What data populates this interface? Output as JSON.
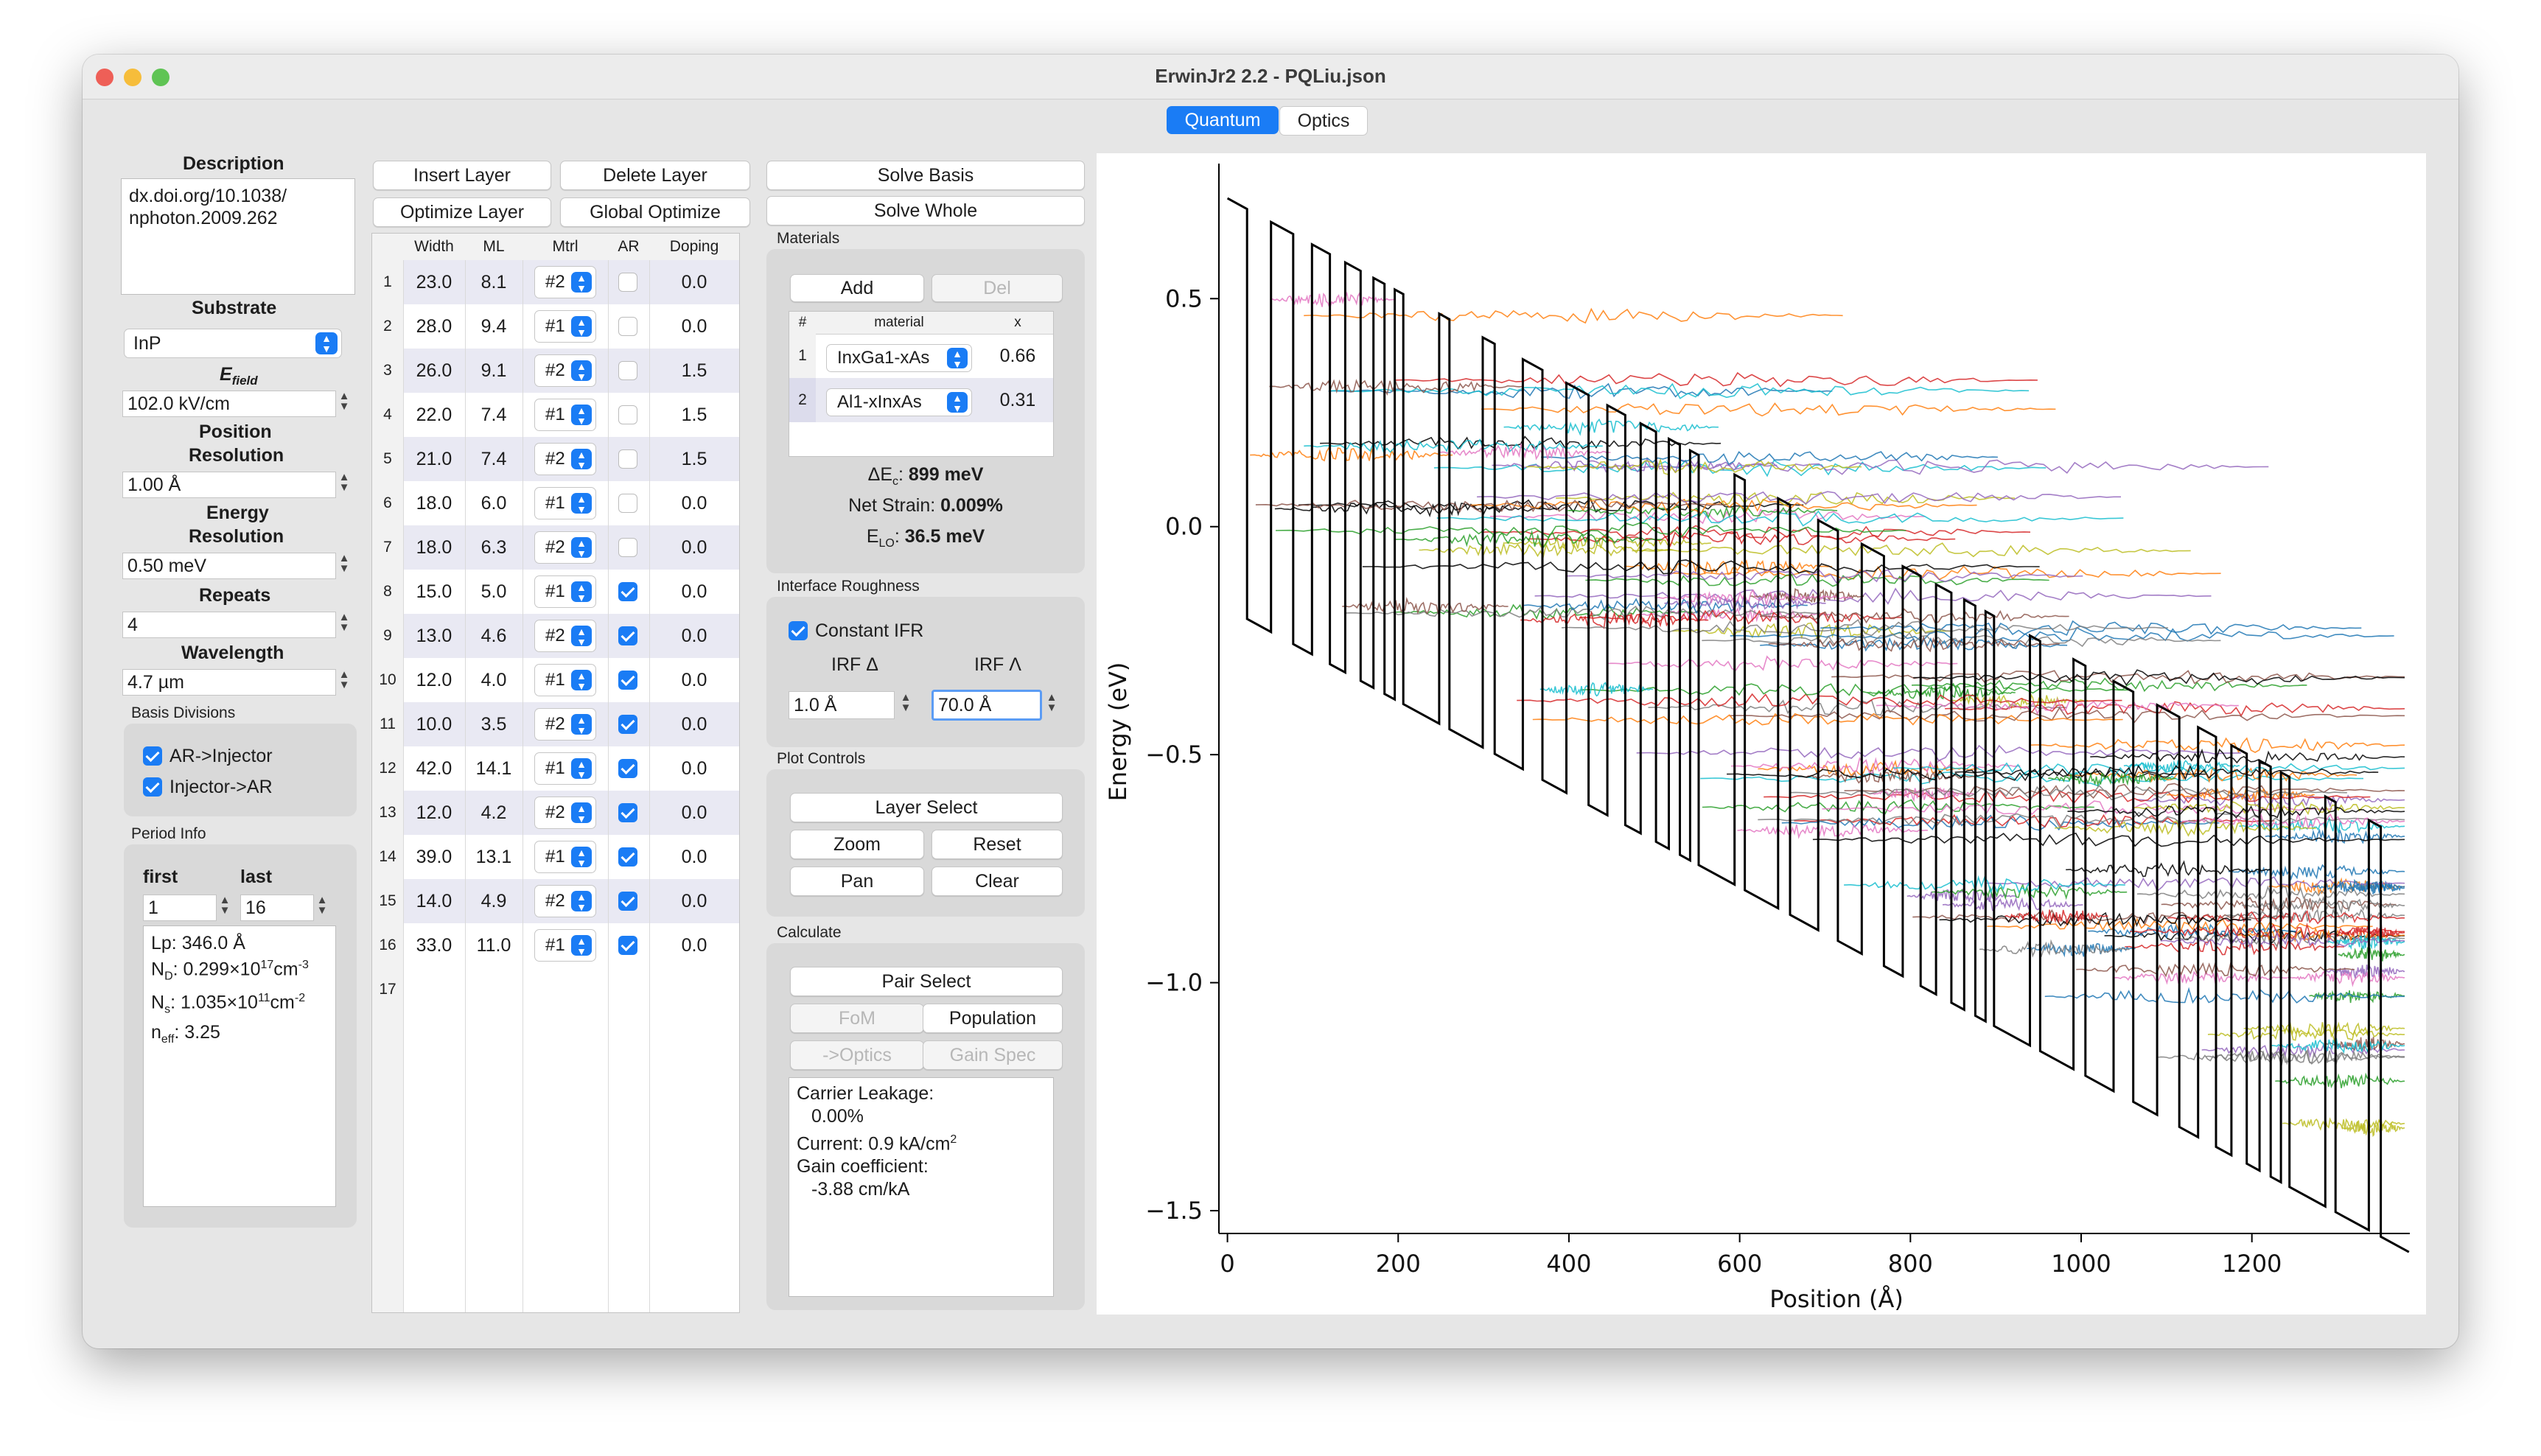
{
  "window": {
    "title": "ErwinJr2 2.2 - PQLiu.json",
    "tabs": [
      {
        "label": "Quantum",
        "active": true
      },
      {
        "label": "Optics",
        "active": false
      }
    ]
  },
  "left": {
    "description_label": "Description",
    "description_lines": [
      "dx.doi.org/10.1038/",
      "nphoton.2009.262"
    ],
    "substrate_label": "Substrate",
    "substrate_value": "InP",
    "efield_label": "E",
    "efield_sub": "field",
    "efield_value": "102.0 kV/cm",
    "posres_label_1": "Position",
    "posres_label_2": "Resolution",
    "posres_value": "1.00 Å",
    "enres_label_1": "Energy",
    "enres_label_2": "Resolution",
    "enres_value": "0.50 meV",
    "repeats_label": "Repeats",
    "repeats_value": "4",
    "wavelength_label": "Wavelength",
    "wavelength_value": "4.7 µm",
    "basis_label": "Basis Divisions",
    "basis_ar_inj": "AR->Injector",
    "basis_inj_ar": "Injector->AR",
    "period_label": "Period Info",
    "first_label": "first",
    "last_label": "last",
    "first_value": "1",
    "last_value": "16",
    "info_lp": "Lp: 346.0 Å",
    "info_nd_a": "N",
    "info_nd_sub": "D",
    "info_nd_b": ": 0.299×10",
    "info_nd_sup": "17",
    "info_nd_c": "cm",
    "info_nd_sup2": "-3",
    "info_ns_a": "N",
    "info_ns_sub": "s",
    "info_ns_b": ": 1.035×10",
    "info_ns_sup": "11",
    "info_ns_c": "cm",
    "info_ns_sup2": "-2",
    "info_neff_a": "n",
    "info_neff_sub": "eff",
    "info_neff_b": ": 3.25"
  },
  "layer": {
    "insert": "Insert Layer",
    "delete": "Delete Layer",
    "optimize": "Optimize Layer",
    "global_opt": "Global Optimize",
    "headers": [
      "Width",
      "ML",
      "Mtrl",
      "AR",
      "Doping"
    ],
    "rows": [
      {
        "n": "1",
        "w": "23.0",
        "ml": "8.1",
        "m": "#2",
        "ar": false,
        "d": "0.0"
      },
      {
        "n": "2",
        "w": "28.0",
        "ml": "9.4",
        "m": "#1",
        "ar": false,
        "d": "0.0"
      },
      {
        "n": "3",
        "w": "26.0",
        "ml": "9.1",
        "m": "#2",
        "ar": false,
        "d": "1.5"
      },
      {
        "n": "4",
        "w": "22.0",
        "ml": "7.4",
        "m": "#1",
        "ar": false,
        "d": "1.5"
      },
      {
        "n": "5",
        "w": "21.0",
        "ml": "7.4",
        "m": "#2",
        "ar": false,
        "d": "1.5"
      },
      {
        "n": "6",
        "w": "18.0",
        "ml": "6.0",
        "m": "#1",
        "ar": false,
        "d": "0.0"
      },
      {
        "n": "7",
        "w": "18.0",
        "ml": "6.3",
        "m": "#2",
        "ar": false,
        "d": "0.0"
      },
      {
        "n": "8",
        "w": "15.0",
        "ml": "5.0",
        "m": "#1",
        "ar": true,
        "d": "0.0"
      },
      {
        "n": "9",
        "w": "13.0",
        "ml": "4.6",
        "m": "#2",
        "ar": true,
        "d": "0.0"
      },
      {
        "n": "10",
        "w": "12.0",
        "ml": "4.0",
        "m": "#1",
        "ar": true,
        "d": "0.0"
      },
      {
        "n": "11",
        "w": "10.0",
        "ml": "3.5",
        "m": "#2",
        "ar": true,
        "d": "0.0"
      },
      {
        "n": "12",
        "w": "42.0",
        "ml": "14.1",
        "m": "#1",
        "ar": true,
        "d": "0.0"
      },
      {
        "n": "13",
        "w": "12.0",
        "ml": "4.2",
        "m": "#2",
        "ar": true,
        "d": "0.0"
      },
      {
        "n": "14",
        "w": "39.0",
        "ml": "13.1",
        "m": "#1",
        "ar": true,
        "d": "0.0"
      },
      {
        "n": "15",
        "w": "14.0",
        "ml": "4.9",
        "m": "#2",
        "ar": true,
        "d": "0.0"
      },
      {
        "n": "16",
        "w": "33.0",
        "ml": "11.0",
        "m": "#1",
        "ar": true,
        "d": "0.0"
      },
      {
        "n": "17",
        "w": "",
        "ml": "",
        "m": "",
        "ar": null,
        "d": ""
      }
    ]
  },
  "solve": {
    "basis": "Solve Basis",
    "whole": "Solve Whole",
    "materials_label": "Materials",
    "add": "Add",
    "del": "Del",
    "mat_headers": [
      "#",
      "material",
      "x"
    ],
    "materials": [
      {
        "n": "1",
        "name": "InxGa1-xAs",
        "x": "0.66"
      },
      {
        "n": "2",
        "name": "Al1-xInxAs",
        "x": "0.31"
      }
    ],
    "dec_label": "ΔE",
    "dec_sub": "c",
    "dec_value": "899 meV",
    "strain_label": "Net Strain: ",
    "strain_value": "0.009%",
    "elo_label": "E",
    "elo_sub": "LO",
    "elo_value": "36.5 meV",
    "ifr_label": "Interface Roughness",
    "const_ifr": "Constant IFR",
    "irf_delta_label": "IRF Δ",
    "irf_lambda_label": "IRF Λ",
    "irf_delta": "1.0 Å",
    "irf_lambda": "70.0 Å",
    "plot_controls_label": "Plot Controls",
    "layer_select": "Layer Select",
    "zoom": "Zoom",
    "reset": "Reset",
    "pan": "Pan",
    "clear": "Clear",
    "calculate_label": "Calculate",
    "pair_select": "Pair Select",
    "fom": "FoM",
    "population": "Population",
    "to_optics": "->Optics",
    "gain_spec": "Gain Spec",
    "result_leak": "Carrier Leakage:",
    "result_leak_val": "0.00%",
    "result_current": "Current: 0.9 kA/cm",
    "result_current_sup": "2",
    "result_gain": "Gain coefficient:",
    "result_gain_val": "-3.88 cm/kA"
  },
  "chart_data": {
    "type": "line",
    "xlabel": "Position (Å)",
    "ylabel": "Energy (eV)",
    "xlim": [
      -10,
      1385
    ],
    "ylim": [
      -1.55,
      0.78
    ],
    "xticks": [
      0,
      200,
      400,
      600,
      800,
      1000,
      1200
    ],
    "yticks": [
      0.5,
      0.0,
      -0.5,
      -1.0,
      -1.5
    ],
    "ytick_labels": [
      "0.5",
      "0.0",
      "−0.5",
      "−1.0",
      "−1.5"
    ],
    "field_kv_cm": 102.0,
    "barrier_height_ev": 0.899,
    "period_angstrom": 346.0,
    "repeats": 4,
    "layers_period": [
      {
        "w": 23.0,
        "barrier": true
      },
      {
        "w": 28.0,
        "barrier": false
      },
      {
        "w": 26.0,
        "barrier": true
      },
      {
        "w": 22.0,
        "barrier": false
      },
      {
        "w": 21.0,
        "barrier": true
      },
      {
        "w": 18.0,
        "barrier": false
      },
      {
        "w": 18.0,
        "barrier": true
      },
      {
        "w": 15.0,
        "barrier": false
      },
      {
        "w": 13.0,
        "barrier": true
      },
      {
        "w": 12.0,
        "barrier": false
      },
      {
        "w": 10.0,
        "barrier": true
      },
      {
        "w": 42.0,
        "barrier": false
      },
      {
        "w": 12.0,
        "barrier": true
      },
      {
        "w": 39.0,
        "barrier": false
      },
      {
        "w": 14.0,
        "barrier": true
      },
      {
        "w": 33.0,
        "barrier": false
      }
    ],
    "wavefunction_colors": [
      "#1f77b4",
      "#ff7f0e",
      "#2ca02c",
      "#d62728",
      "#9467bd",
      "#8c564b",
      "#e377c2",
      "#7f7f7f",
      "#bcbd22",
      "#17becf",
      "#000000"
    ]
  }
}
